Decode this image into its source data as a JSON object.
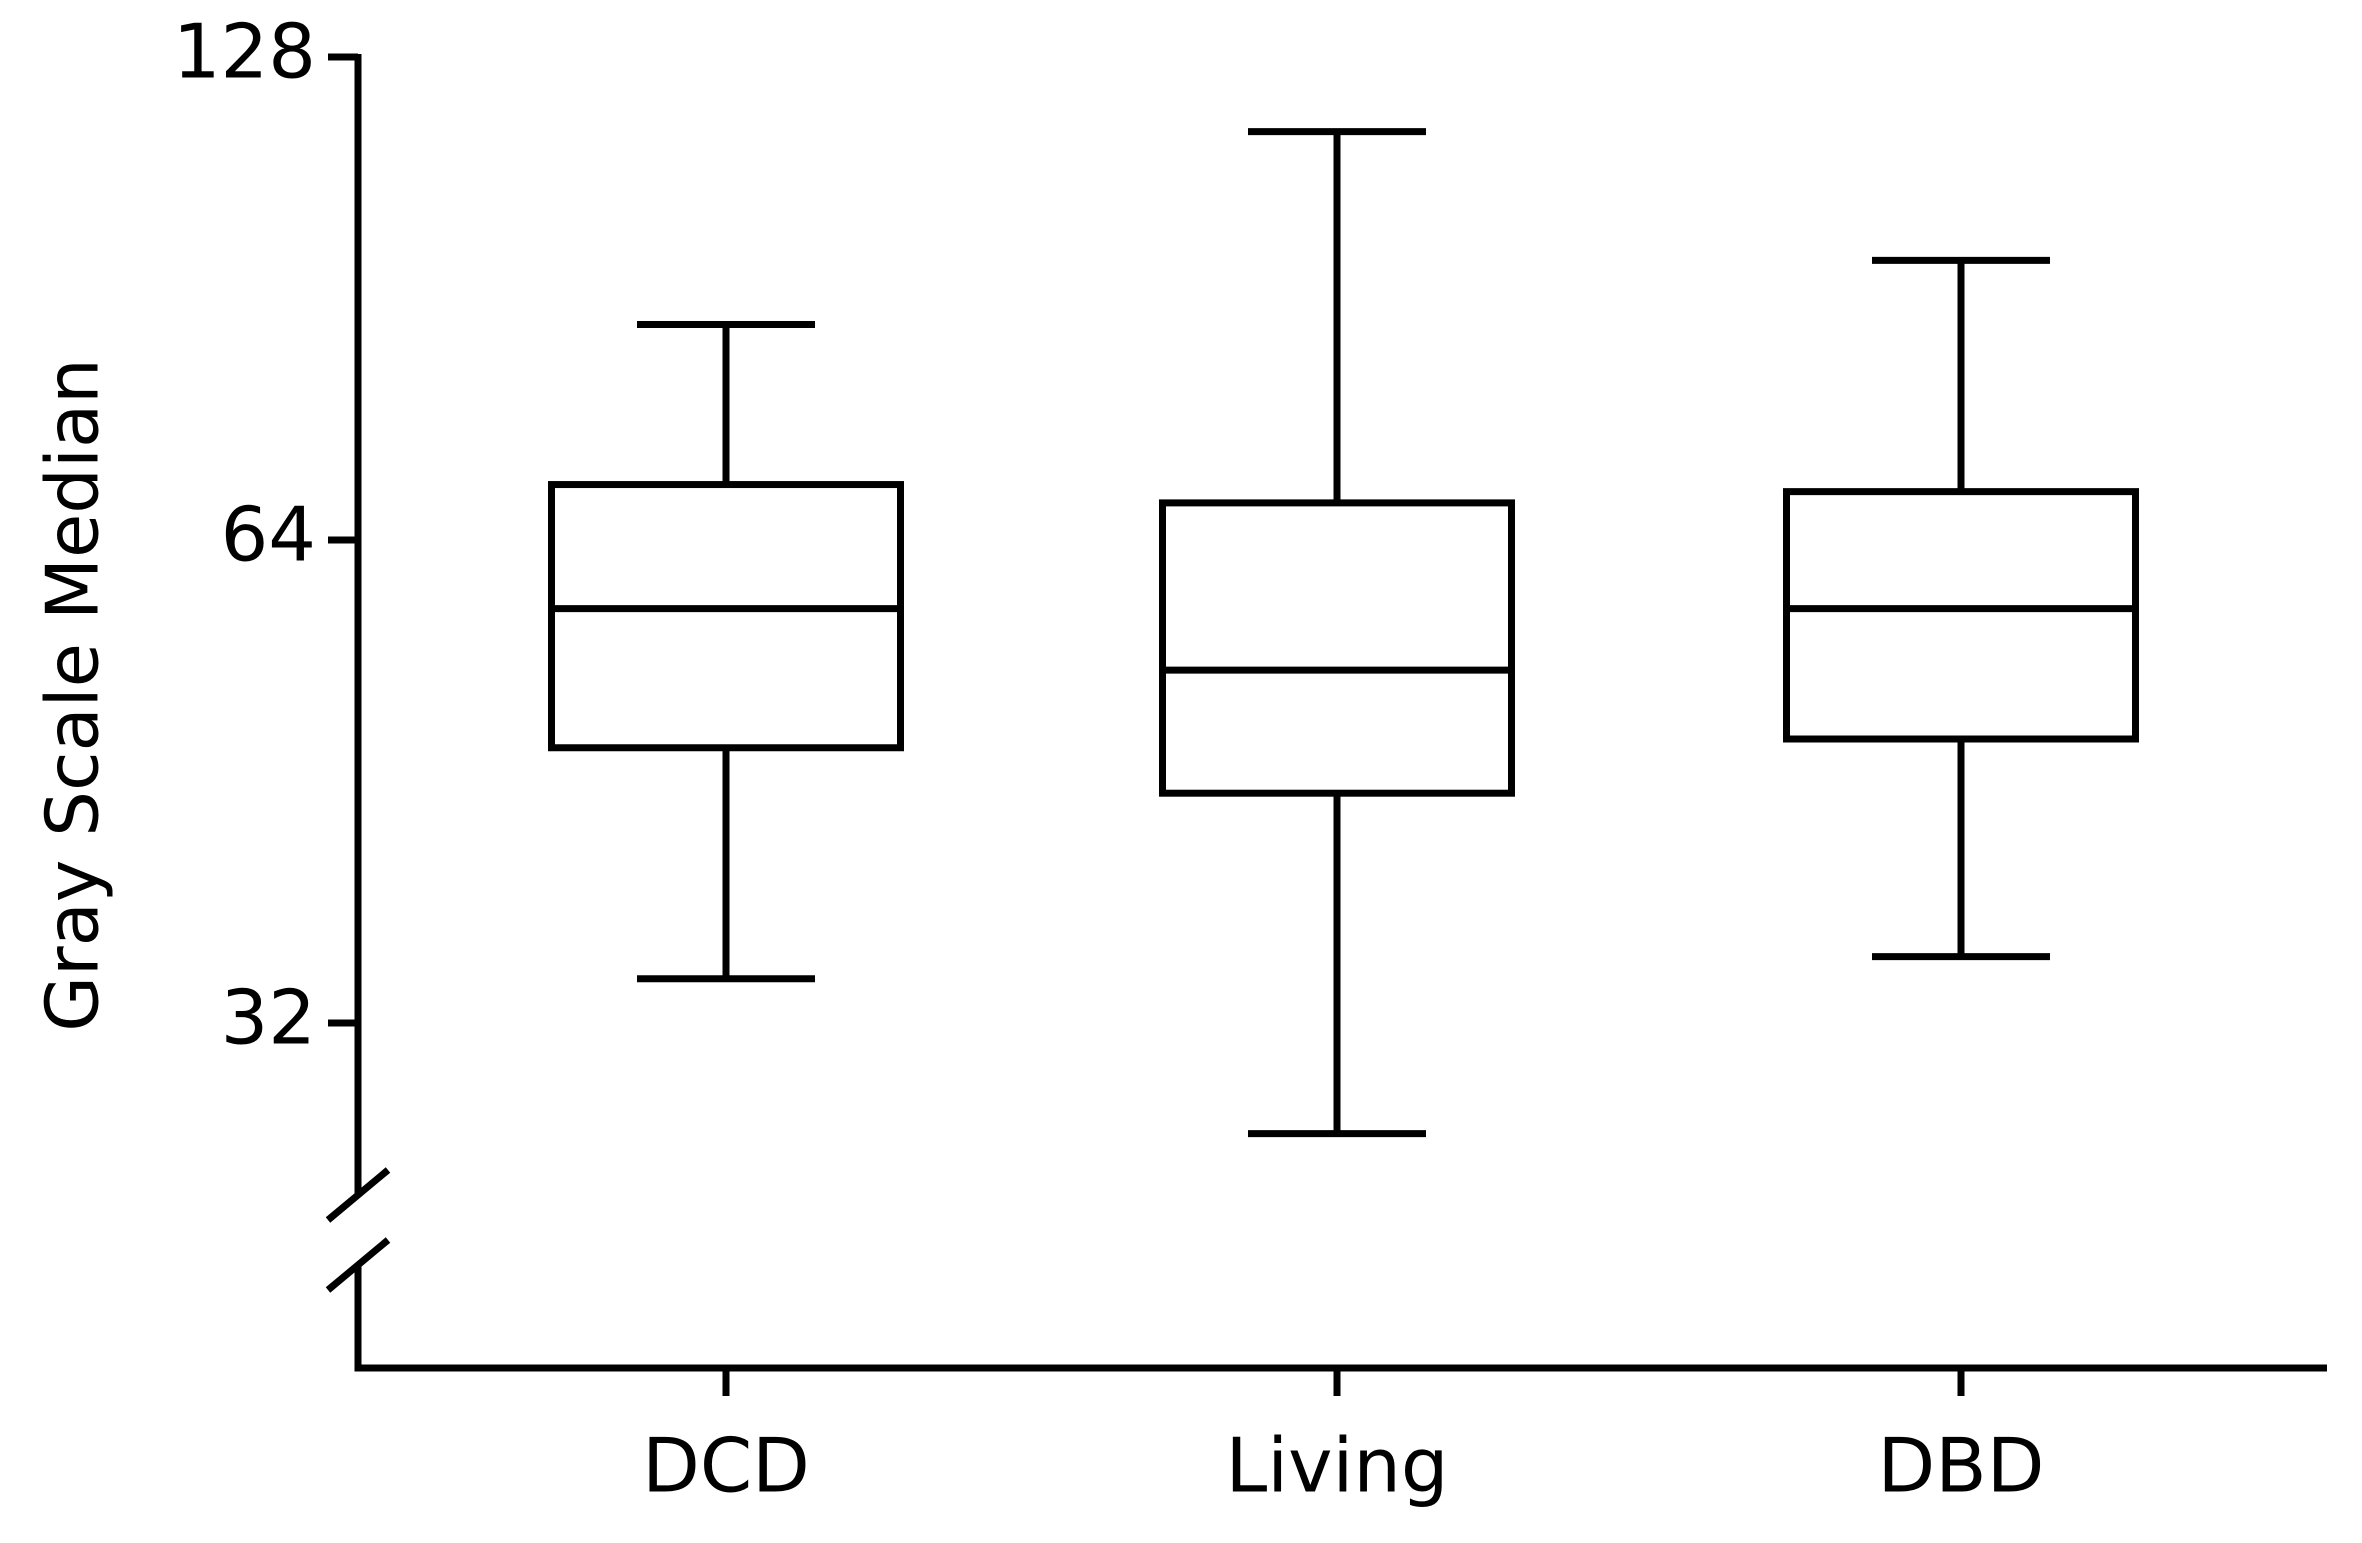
{
  "chart_data": {
    "type": "box",
    "y_label": "Gray Scale Median",
    "categories": [
      "DCD",
      "Living",
      "DBD"
    ],
    "min": [
      34.1,
      27.3,
      35.2
    ],
    "q1": [
      47.5,
      44.5,
      48.1
    ],
    "median": [
      58,
      53.1,
      58
    ],
    "q3": [
      69.3,
      67.5,
      68.6
    ],
    "max": [
      87.2,
      115,
      95.6
    ],
    "color": "#000000",
    "ylim": [
      25,
      128
    ],
    "yticks": [
      32,
      64,
      128
    ],
    "log_base": 2,
    "axis_break": true,
    "grid": false
  }
}
